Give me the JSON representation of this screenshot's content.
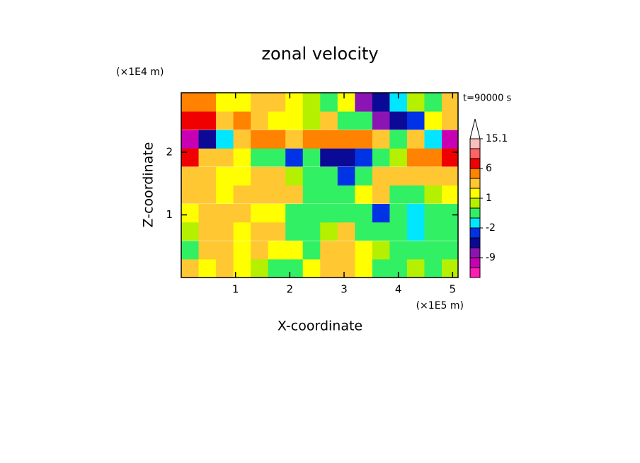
{
  "chart_data": {
    "type": "contour",
    "title": "zonal velocity",
    "x_label": "X-coordinate",
    "y_label": "Z-coordinate",
    "x_unit": "(×1E5 m)",
    "y_unit": "(×1E4 m)",
    "annotation": "t=90000 s",
    "xlim": [
      0,
      5.1
    ],
    "ylim": [
      0,
      2.95
    ],
    "xticks": [
      1,
      2,
      3,
      4,
      5
    ],
    "yticks": [
      1,
      2
    ],
    "x": [
      0.16,
      0.48,
      0.8,
      1.12,
      1.44,
      1.76,
      2.08,
      2.4,
      2.72,
      3.04,
      3.36,
      3.68,
      4.0,
      4.32,
      4.64,
      4.96
    ],
    "y": [
      0.15,
      0.44,
      0.74,
      1.03,
      1.33,
      1.62,
      1.92,
      2.21,
      2.51,
      2.8
    ],
    "z": [
      [
        2,
        1,
        3,
        1,
        0,
        -1,
        -1,
        1,
        2,
        2,
        1,
        -1,
        -1,
        0,
        -1,
        0
      ],
      [
        -1,
        3,
        2,
        1,
        3,
        1,
        1,
        -1,
        3,
        3,
        1,
        0,
        -1,
        -1,
        -1,
        -1
      ],
      [
        0,
        2,
        2,
        1,
        2,
        2,
        -1,
        -1,
        0,
        2,
        -1,
        -1,
        -1,
        -2,
        -1,
        -1
      ],
      [
        1,
        2,
        3,
        2,
        1,
        1,
        -1,
        -1,
        -1,
        -1,
        -1,
        -3,
        -1,
        -2,
        -1,
        -1
      ],
      [
        2,
        3,
        1,
        2,
        3,
        2,
        2,
        -1,
        -1,
        -1,
        1,
        2,
        -1,
        -1,
        0,
        1
      ],
      [
        2,
        3,
        1,
        1,
        2,
        2,
        0,
        -1,
        -1,
        -3,
        -1,
        2,
        3,
        2,
        2,
        2
      ],
      [
        7,
        3,
        2,
        1,
        -1,
        -1,
        -4,
        -1,
        -5,
        -6,
        -4,
        -1,
        0,
        4,
        5,
        6
      ],
      [
        -12,
        -6,
        -2,
        3,
        5,
        4,
        2,
        5,
        5,
        4,
        5,
        3,
        -1,
        2,
        -2,
        -10
      ],
      [
        6,
        6,
        3,
        4,
        2,
        1,
        1,
        0,
        3,
        -1,
        -1,
        -7,
        -6,
        -3,
        1,
        2
      ],
      [
        5,
        5,
        1,
        1,
        2,
        3,
        1,
        0,
        -1,
        1,
        -7,
        -5,
        -2,
        0,
        -1,
        2
      ]
    ],
    "colorbar": {
      "levels": [
        -12,
        -9,
        -6,
        -4,
        -2,
        -1,
        0,
        1,
        2,
        4,
        6,
        9,
        12,
        15.1
      ],
      "colors": [
        "#ff1eb4",
        "#c800b4",
        "#8c14b4",
        "#0a0a96",
        "#0032e6",
        "#00e6ff",
        "#32f064",
        "#b4f000",
        "#ffff00",
        "#ffc832",
        "#ff8200",
        "#f00000",
        "#ff6464",
        "#ffbebe",
        "#ffffff"
      ],
      "ticks": [
        -9,
        -2,
        1,
        6,
        15.1
      ]
    }
  }
}
